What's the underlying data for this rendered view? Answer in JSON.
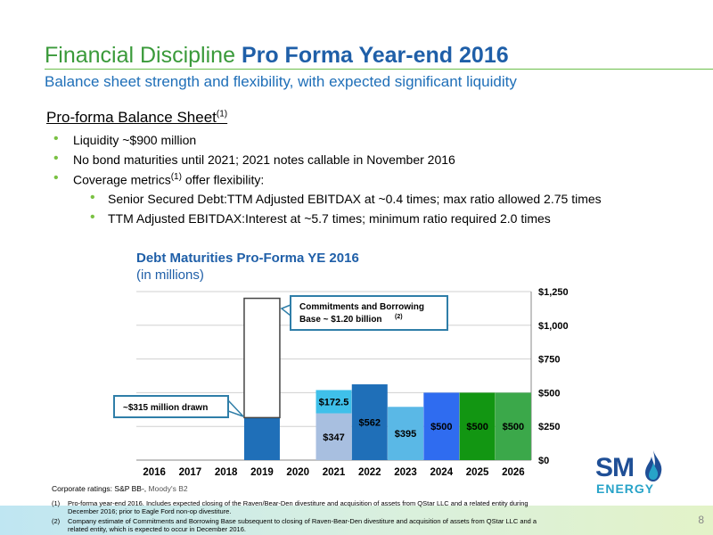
{
  "header": {
    "title_plain": "Financial Discipline",
    "title_bold": "Pro Forma Year-end 2016",
    "subtitle": "Balance sheet strength and flexibility, with expected significant liquidity"
  },
  "section": {
    "heading": "Pro-forma Balance Sheet",
    "heading_sup": "(1)"
  },
  "bullets": [
    {
      "text": "Liquidity ~$900 million"
    },
    {
      "text": "No bond maturities until 2021; 2021 notes callable in November 2016"
    },
    {
      "text_before": "Coverage metrics",
      "sup": "(1)",
      "text_after": " offer flexibility:"
    }
  ],
  "sub_bullets": [
    {
      "text": "Senior Secured Debt:TTM Adjusted EBITDAX at ~0.4 times; max ratio allowed 2.75 times"
    },
    {
      "text": "TTM Adjusted EBITDAX:Interest at ~5.7 times; minimum ratio required 2.0 times"
    }
  ],
  "chart_data": {
    "type": "bar",
    "title": "Debt Maturities Pro-Forma YE 2016",
    "subtitle": "(in millions)",
    "categories": [
      "2016",
      "2017",
      "2018",
      "2019",
      "2020",
      "2021",
      "2022",
      "2023",
      "2024",
      "2025",
      "2026"
    ],
    "ylim": [
      0,
      1250
    ],
    "y_ticks": [
      "$0",
      "$250",
      "$500",
      "$750",
      "$1,000",
      "$1,250"
    ],
    "y_tick_values": [
      0,
      250,
      500,
      750,
      1000,
      1250
    ],
    "bars": [
      {
        "category": "2019",
        "segments": [
          {
            "value": 315,
            "color": "#1f6fb8",
            "label": ""
          },
          {
            "value": 885,
            "color": "#ffffff",
            "outline": "#444444",
            "label": ""
          }
        ]
      },
      {
        "category": "2021",
        "segments": [
          {
            "value": 347,
            "color": "#a8bfe0",
            "label": "$347"
          },
          {
            "value": 172.5,
            "color": "#3fc0ea",
            "label": "$172.5"
          }
        ]
      },
      {
        "category": "2022",
        "segments": [
          {
            "value": 562,
            "color": "#1f6fb8",
            "label": "$562"
          }
        ]
      },
      {
        "category": "2023",
        "segments": [
          {
            "value": 395,
            "color": "#5ab8e6",
            "label": "$395"
          }
        ]
      },
      {
        "category": "2024",
        "segments": [
          {
            "value": 500,
            "color": "#2f6cf0",
            "label": "$500"
          }
        ]
      },
      {
        "category": "2025",
        "segments": [
          {
            "value": 500,
            "color": "#129612",
            "label": "$500"
          }
        ]
      },
      {
        "category": "2026",
        "segments": [
          {
            "value": 500,
            "color": "#3ba84a",
            "label": "$500"
          }
        ]
      }
    ],
    "callouts": [
      {
        "text_line1": "Commitments and Borrowing",
        "text_line2": "Base ~ $1.20 billion",
        "sup": "(2)"
      },
      {
        "text_line1": "~$315 million drawn"
      }
    ]
  },
  "ratings": {
    "prefix": "Corporate ratings: S&P BB-, ",
    "moodys": "Moody's B2"
  },
  "footnotes": [
    {
      "num": "(1)",
      "text": "Pro-forma year-end 2016. Includes expected closing of the Raven/Bear-Den divestiture and acquisition of assets from QStar LLC and a related entity during December 2016; prior to Eagle Ford non-op divestiture."
    },
    {
      "num": "(2)",
      "text": "Company estimate of Commitments and Borrowing Base subsequent to closing of Raven-Bear-Den divestiture and acquisition of assets from QStar LLC and a related entity, which is expected to occur in December 2016."
    }
  ],
  "logo": {
    "sm": "SM",
    "energy": "ENERGY",
    "icon": "flame-icon"
  },
  "page_number": "8"
}
